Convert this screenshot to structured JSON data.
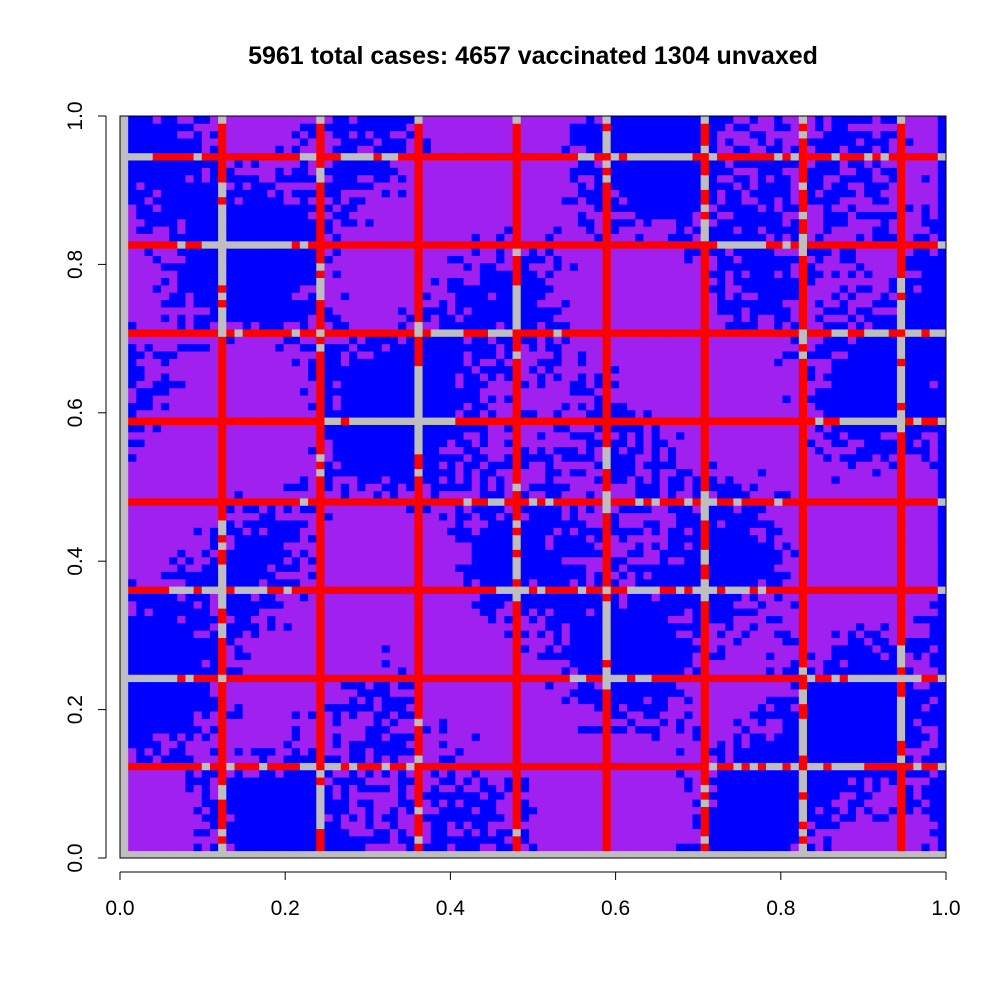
{
  "chart_data": {
    "type": "heatmap",
    "title": "5961 total cases: 4657 vaccinated 1304 unvaxed",
    "xlabel": "",
    "ylabel": "",
    "xlim": [
      0,
      1
    ],
    "ylim": [
      0,
      1
    ],
    "x_ticks": [
      "0.0",
      "0.2",
      "0.4",
      "0.6",
      "0.8",
      "1.0"
    ],
    "y_ticks": [
      "0.0",
      "0.2",
      "0.4",
      "0.6",
      "0.8",
      "1.0"
    ],
    "grid_cells": 101,
    "colors": {
      "vaccinated_uninfected": "#0000ff",
      "vaccinated_infected": "#a020f0",
      "unvaxed_uninfected": "#bebebe",
      "unvaxed_infected": "#ff0000"
    },
    "unvaxed_rows_y": [
      0.0,
      0.119,
      0.238,
      0.356,
      0.475,
      0.594,
      0.713,
      0.832,
      0.951
    ],
    "unvaxed_cols_x": [
      0.0,
      0.119,
      0.238,
      0.356,
      0.475,
      0.594,
      0.713,
      0.832,
      0.951
    ],
    "totals": {
      "total_cases": 5961,
      "vaccinated_cases": 4657,
      "unvaxed_cases": 1304
    }
  }
}
